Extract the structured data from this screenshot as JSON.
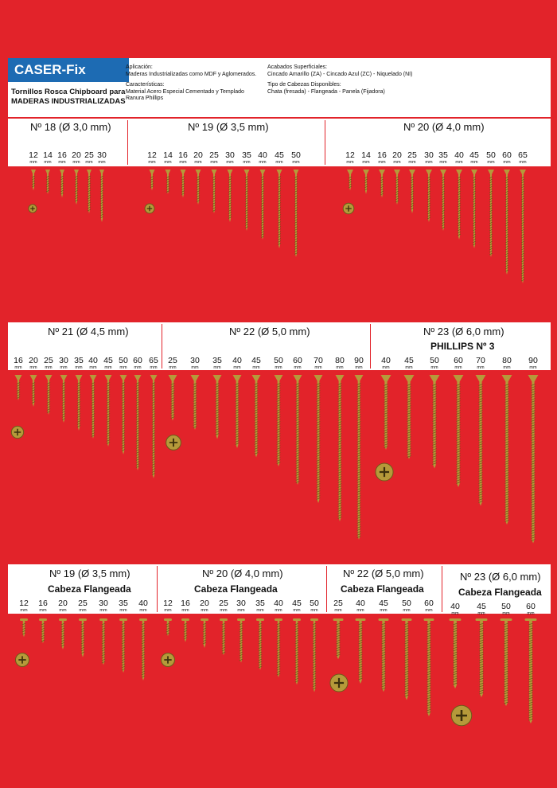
{
  "header": {
    "brand": "CASER-Fix",
    "subtitle_line1": "Tornillos Rosca Chipboard para",
    "subtitle_line2": "MADERAS INDUSTRIALIZADAS",
    "aplicacion_label": "Aplicación:",
    "aplicacion_text": "Maderas Industrializadas como MDF y Aglomerados.",
    "caracteristicas_label": "Características:",
    "caracteristicas_text1": "Material Acero Especial Cementado y Templado",
    "caracteristicas_text2": "Ranura Phillips",
    "acabados_label": "Acabados Superficiales:",
    "acabados_text": "Cincado Amarillo (ZA) - Cincado Azul (ZC) - Niquelado (NI)",
    "cabezas_label": "Tipo de Cabezas Disponibles:",
    "cabezas_text": "Chata (fresada) - Flangeada - Panela (Fijadora)"
  },
  "unit": "mm",
  "sections": [
    {
      "title": "Nº 18  (Ø 3,0 mm)",
      "subtitle": "",
      "lengths": [
        "12",
        "14",
        "16",
        "20",
        "25",
        "30"
      ],
      "head": "flat"
    },
    {
      "title": "Nº 19  (Ø 3,5 mm)",
      "subtitle": "",
      "lengths": [
        "12",
        "14",
        "16",
        "20",
        "25",
        "30",
        "35",
        "40",
        "45",
        "50"
      ],
      "head": "flat"
    },
    {
      "title": "Nº 20  (Ø 4,0 mm)",
      "subtitle": "",
      "lengths": [
        "12",
        "14",
        "16",
        "20",
        "25",
        "30",
        "35",
        "40",
        "45",
        "50",
        "60",
        "65"
      ],
      "head": "flat"
    },
    {
      "title": "Nº 21  (Ø 4,5 mm)",
      "subtitle": "",
      "lengths": [
        "16",
        "20",
        "25",
        "30",
        "35",
        "40",
        "45",
        "50",
        "60",
        "65"
      ],
      "head": "flat"
    },
    {
      "title": "Nº 22  (Ø 5,0 mm)",
      "subtitle": "",
      "lengths": [
        "25",
        "30",
        "35",
        "40",
        "45",
        "50",
        "60",
        "70",
        "80",
        "90"
      ],
      "head": "flat"
    },
    {
      "title": "Nº 23  (Ø 6,0 mm)",
      "subtitle": "PHILLIPS Nº 3",
      "lengths": [
        "40",
        "45",
        "50",
        "60",
        "70",
        "80",
        "90"
      ],
      "head": "flat"
    },
    {
      "title": "Nº 19  (Ø 3,5 mm)",
      "subtitle": "Cabeza Flangeada",
      "lengths": [
        "12",
        "16",
        "20",
        "25",
        "30",
        "35",
        "40"
      ],
      "head": "flange"
    },
    {
      "title": "Nº 20  (Ø 4,0 mm)",
      "subtitle": "Cabeza Flangeada",
      "lengths": [
        "12",
        "16",
        "20",
        "25",
        "30",
        "35",
        "40",
        "45",
        "50"
      ],
      "head": "flange"
    },
    {
      "title": "Nº 22  (Ø 5,0 mm)",
      "subtitle": "Cabeza Flangeada",
      "lengths": [
        "25",
        "40",
        "45",
        "50",
        "60"
      ],
      "head": "flange"
    },
    {
      "title": "Nº 23  (Ø 6,0 mm)",
      "subtitle": "Cabeza Flangeada",
      "lengths": [
        "40",
        "45",
        "50",
        "60"
      ],
      "head": "flange"
    }
  ],
  "colors": {
    "background": "#e2232a",
    "brand": "#1d6bb3",
    "screw": "#b59a3a"
  }
}
